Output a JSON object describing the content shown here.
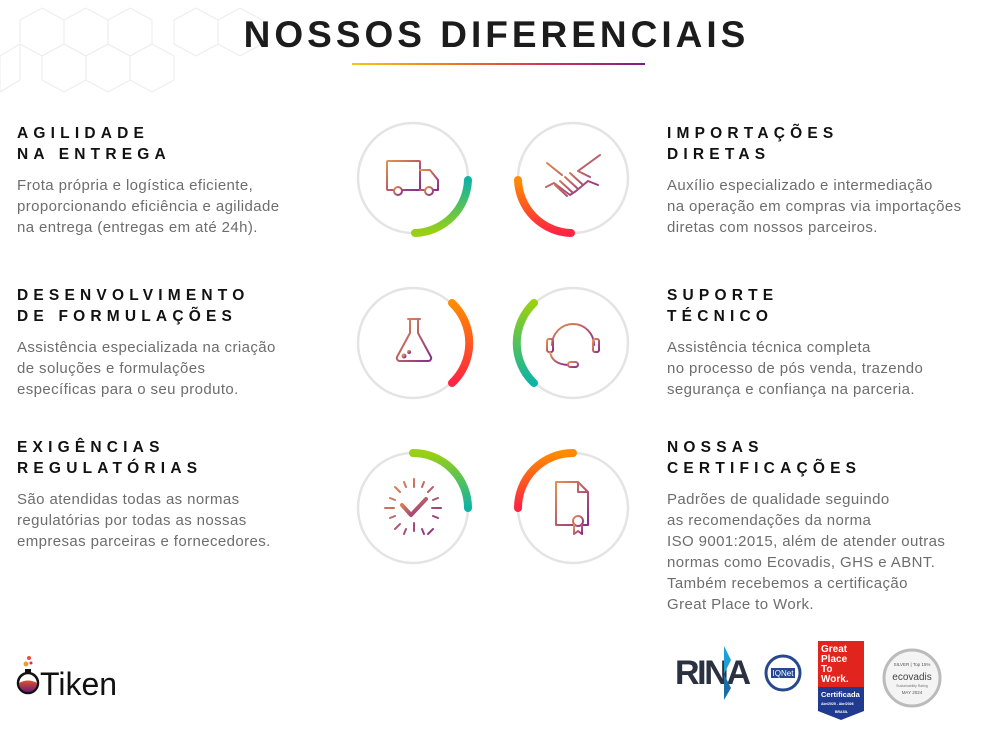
{
  "title": "NOSSOS DIFERENCIAIS",
  "features": [
    {
      "heading_line1": "AGILIDADE",
      "heading_line2": "NA ENTREGA",
      "lines": [
        "Frota própria e logística eficiente,",
        "proporcionando eficiência e agilidade",
        "na entrega (entregas em até 24h)."
      ],
      "icon": "truck-icon"
    },
    {
      "heading_line1": "IMPORTAÇÕES",
      "heading_line2": "DIRETAS",
      "lines": [
        "Auxílio especializado e intermediação",
        "na operação em compras via importações",
        "diretas com nossos parceiros."
      ],
      "icon": "handshake-icon"
    },
    {
      "heading_line1": "DESENVOLVIMENTO",
      "heading_line2": "DE FORMULAÇÕES",
      "lines": [
        "Assistência especializada na criação",
        "de soluções e formulações",
        "específicas para o seu produto."
      ],
      "icon": "flask-icon"
    },
    {
      "heading_line1": "SUPORTE",
      "heading_line2": "TÉCNICO",
      "lines": [
        "Assistência técnica completa",
        "no processo de pós venda, trazendo",
        "segurança e confiança na parceria."
      ],
      "icon": "headset-icon"
    },
    {
      "heading_line1": "EXIGÊNCIAS",
      "heading_line2": "REGULATÓRIAS",
      "lines": [
        "São atendidas todas as normas",
        "regulatórias por todas as nossas",
        "empresas parceiras e fornecedores."
      ],
      "icon": "checkmark-burst-icon"
    },
    {
      "heading_line1": "NOSSAS",
      "heading_line2": "CERTIFICAÇÕES",
      "lines": [
        "Padrões de qualidade seguindo",
        "as recomendações da norma",
        "ISO 9001:2015, além de atender outras",
        "normas como Ecovadis, GHS e ABNT.",
        "Também recebemos a certificação",
        "Great Place to Work."
      ],
      "icon": "certificate-icon"
    }
  ],
  "brand": {
    "name": "Tiken"
  },
  "certifications": {
    "rina": "RINA",
    "iqnet": "IQNet",
    "gptw": {
      "line1": "Great",
      "line2": "Place",
      "line3": "To",
      "line4": "Work.",
      "badge": "Certificada",
      "period": "Abr/2025 - Abr/2026",
      "country": "BRASIL"
    },
    "ecovadis": {
      "top": "SILVER | Top 15%",
      "name": "ecovadis",
      "sub": "Sustainability Rating",
      "date": "MAY 2024"
    }
  },
  "colors": {
    "accent_green": "#8fd11a",
    "accent_teal": "#0db3a6",
    "accent_orange": "#ff8c00",
    "accent_red": "#ff2443",
    "icon_start": "#e08a4a",
    "icon_end": "#8a2a8a"
  }
}
